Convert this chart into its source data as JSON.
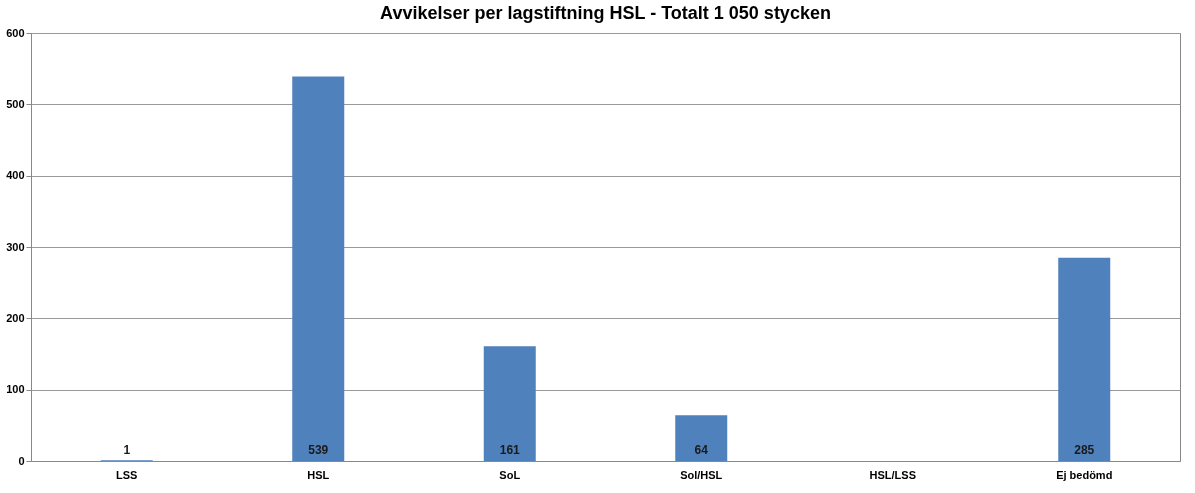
{
  "chart_data": {
    "type": "bar",
    "title": "Avvikelser per lagstiftning HSL - Totalt 1 050 stycken",
    "categories": [
      "LSS",
      "HSL",
      "SoL",
      "Sol/HSL",
      "HSL/LSS",
      "Ej bedömd"
    ],
    "values": [
      1,
      539,
      161,
      64,
      0,
      285
    ],
    "value_labels": [
      "1",
      "539",
      "161",
      "64",
      null,
      "285"
    ],
    "color": "#4f81bd",
    "ylim": [
      0,
      600
    ],
    "yticks": [
      0,
      100,
      200,
      300,
      400,
      500,
      600
    ],
    "grid": "y"
  }
}
